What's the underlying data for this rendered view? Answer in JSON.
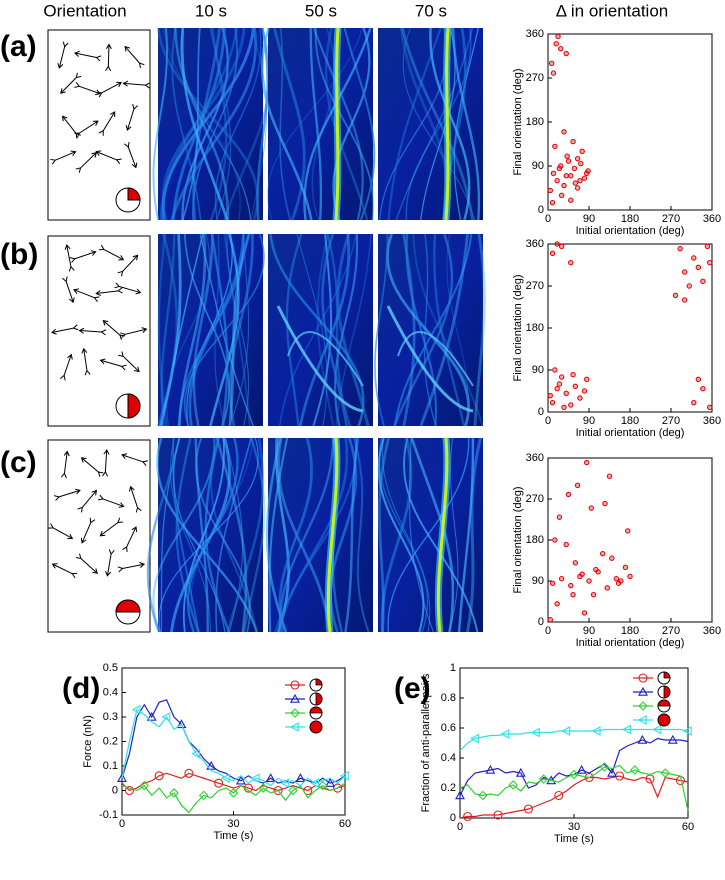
{
  "figure": {
    "headers": [
      "Orientation",
      "10 s",
      "50 s",
      "70 s",
      "Δ in orientation"
    ],
    "panel_labels": [
      "(a)",
      "(b)",
      "(c)",
      "(d)",
      "(e)"
    ]
  },
  "chart_data": [
    {
      "type": "scatter",
      "xlabel": "Initial orientation (deg)",
      "ylabel": "Final orientation (deg)",
      "color": "#e00000",
      "xlim": [
        0,
        360
      ],
      "ylim": [
        0,
        360
      ],
      "xticks": [
        0,
        90,
        180,
        270,
        360
      ],
      "yticks": [
        0,
        90,
        180,
        270,
        360
      ],
      "x": [
        5,
        12,
        20,
        28,
        35,
        42,
        50,
        58,
        65,
        72,
        80,
        88,
        15,
        30,
        45,
        60,
        75,
        10,
        25,
        40,
        55,
        70,
        85,
        50,
        35,
        65,
        8,
        18,
        22,
        12,
        28,
        40
      ],
      "values": [
        40,
        75,
        60,
        90,
        50,
        110,
        70,
        85,
        45,
        95,
        65,
        80,
        130,
        30,
        100,
        55,
        120,
        15,
        85,
        70,
        140,
        60,
        75,
        20,
        160,
        105,
        300,
        340,
        355,
        280,
        330,
        320
      ]
    },
    {
      "type": "scatter",
      "xlabel": "Initial orientation (deg)",
      "ylabel": "Final orientation (deg)",
      "color": "#e00000",
      "xlim": [
        0,
        360
      ],
      "ylim": [
        0,
        360
      ],
      "xticks": [
        0,
        90,
        180,
        270,
        360
      ],
      "yticks": [
        0,
        90,
        180,
        270,
        360
      ],
      "x": [
        10,
        25,
        40,
        55,
        70,
        85,
        15,
        35,
        60,
        80,
        5,
        30,
        50,
        20,
        280,
        300,
        320,
        340,
        355,
        290,
        310,
        330,
        350,
        300,
        10,
        30,
        50,
        20,
        320,
        340,
        355,
        330
      ],
      "values": [
        20,
        60,
        40,
        80,
        30,
        70,
        90,
        10,
        55,
        45,
        35,
        75,
        15,
        50,
        250,
        300,
        330,
        280,
        320,
        350,
        270,
        310,
        355,
        240,
        340,
        355,
        320,
        360,
        20,
        50,
        10,
        70
      ]
    },
    {
      "type": "scatter",
      "xlabel": "Initial orientation (deg)",
      "ylabel": "Final orientation (deg)",
      "color": "#e00000",
      "xlim": [
        0,
        360
      ],
      "ylim": [
        0,
        360
      ],
      "xticks": [
        0,
        90,
        180,
        270,
        360
      ],
      "yticks": [
        0,
        90,
        180,
        270,
        360
      ],
      "x": [
        10,
        30,
        50,
        70,
        90,
        110,
        130,
        150,
        170,
        20,
        60,
        100,
        140,
        180,
        40,
        80,
        120,
        160,
        5,
        25,
        65,
        95,
        135,
        175,
        45,
        85,
        125,
        15,
        55,
        105,
        155,
        75
      ],
      "values": [
        85,
        95,
        80,
        100,
        90,
        110,
        75,
        95,
        120,
        40,
        130,
        60,
        140,
        100,
        170,
        20,
        150,
        90,
        5,
        230,
        300,
        250,
        320,
        200,
        280,
        350,
        260,
        180,
        60,
        115,
        85,
        105
      ]
    },
    {
      "type": "line",
      "xlabel": "Time (s)",
      "ylabel": "Force (nN)",
      "xlim": [
        0,
        60
      ],
      "ylim": [
        -0.1,
        0.5
      ],
      "xticks": [
        0,
        30,
        60
      ],
      "yticks": [
        -0.1,
        0,
        0.1,
        0.2,
        0.3,
        0.4,
        0.5
      ],
      "x": [
        0,
        2,
        4,
        6,
        8,
        10,
        12,
        14,
        16,
        18,
        20,
        22,
        24,
        26,
        28,
        30,
        32,
        34,
        36,
        38,
        40,
        42,
        44,
        46,
        48,
        50,
        52,
        54,
        56,
        58,
        60
      ],
      "series": [
        {
          "color": "#e02020",
          "marker": "o",
          "values": [
            0.03,
            0.0,
            0.01,
            0.03,
            0.04,
            0.06,
            0.07,
            0.06,
            0.05,
            0.07,
            0.06,
            0.05,
            0.04,
            0.03,
            0.02,
            0.01,
            0.02,
            0.01,
            0.0,
            0.02,
            0.01,
            0.0,
            0.01,
            0.02,
            0.01,
            0.0,
            0.02,
            0.01,
            0.0,
            0.01,
            0.02
          ]
        },
        {
          "color": "#2020c0",
          "marker": "^",
          "values": [
            0.05,
            0.15,
            0.3,
            0.35,
            0.3,
            0.36,
            0.37,
            0.3,
            0.27,
            0.2,
            0.17,
            0.13,
            0.1,
            0.08,
            0.07,
            0.05,
            0.04,
            0.06,
            0.04,
            0.03,
            0.05,
            0.03,
            0.04,
            0.03,
            0.05,
            0.04,
            0.03,
            0.05,
            0.03,
            0.04,
            0.06
          ]
        },
        {
          "color": "#30d030",
          "marker": "d",
          "values": [
            0.02,
            0.01,
            0.0,
            0.02,
            -0.02,
            0.01,
            -0.03,
            -0.01,
            -0.06,
            -0.09,
            -0.05,
            -0.02,
            -0.03,
            0.0,
            0.01,
            -0.01,
            0.02,
            0.0,
            -0.02,
            0.01,
            -0.01,
            0.0,
            -0.04,
            0.0,
            0.02,
            -0.03,
            0.0,
            0.02,
            0.0,
            0.01,
            0.03
          ]
        },
        {
          "color": "#30e0e8",
          "marker": "<",
          "values": [
            0.05,
            0.2,
            0.33,
            0.31,
            0.28,
            0.26,
            0.3,
            0.25,
            0.27,
            0.2,
            0.15,
            0.12,
            0.08,
            0.07,
            0.05,
            0.04,
            0.06,
            0.03,
            0.05,
            0.04,
            0.02,
            0.05,
            0.03,
            0.04,
            0.02,
            0.05,
            0.03,
            0.04,
            0.05,
            0.03,
            0.06
          ]
        }
      ]
    },
    {
      "type": "line",
      "xlabel": "Time (s)",
      "ylabel": "Fraction of anti-parallel pairs",
      "xlim": [
        0,
        60
      ],
      "ylim": [
        0,
        1
      ],
      "xticks": [
        0,
        30,
        60
      ],
      "yticks": [
        0,
        0.2,
        0.4,
        0.6,
        0.8,
        1
      ],
      "x": [
        0,
        2,
        4,
        6,
        8,
        10,
        12,
        14,
        16,
        18,
        20,
        22,
        24,
        26,
        28,
        30,
        32,
        34,
        36,
        38,
        40,
        42,
        44,
        46,
        48,
        50,
        52,
        54,
        56,
        58,
        60
      ],
      "series": [
        {
          "color": "#e02020",
          "marker": "o",
          "values": [
            0.0,
            0.01,
            0.01,
            0.02,
            0.02,
            0.02,
            0.03,
            0.04,
            0.05,
            0.06,
            0.08,
            0.1,
            0.12,
            0.15,
            0.18,
            0.22,
            0.25,
            0.27,
            0.27,
            0.26,
            0.27,
            0.28,
            0.26,
            0.25,
            0.27,
            0.26,
            0.14,
            0.27,
            0.26,
            0.25,
            0.24
          ]
        },
        {
          "color": "#2020c0",
          "marker": "^",
          "values": [
            0.15,
            0.25,
            0.3,
            0.31,
            0.32,
            0.33,
            0.3,
            0.31,
            0.3,
            0.2,
            0.22,
            0.27,
            0.25,
            0.3,
            0.28,
            0.29,
            0.32,
            0.3,
            0.33,
            0.36,
            0.3,
            0.45,
            0.48,
            0.5,
            0.52,
            0.5,
            0.53,
            0.52,
            0.52,
            0.52,
            0.51
          ]
        },
        {
          "color": "#30d030",
          "marker": "d",
          "values": [
            0.2,
            0.22,
            0.16,
            0.15,
            0.16,
            0.15,
            0.2,
            0.22,
            0.18,
            0.24,
            0.23,
            0.26,
            0.25,
            0.24,
            0.27,
            0.29,
            0.28,
            0.27,
            0.3,
            0.34,
            0.33,
            0.35,
            0.3,
            0.32,
            0.3,
            0.29,
            0.31,
            0.3,
            0.29,
            0.28,
            0.05
          ]
        },
        {
          "color": "#30e0e8",
          "marker": "<",
          "values": [
            0.45,
            0.5,
            0.53,
            0.54,
            0.55,
            0.55,
            0.56,
            0.56,
            0.56,
            0.57,
            0.57,
            0.57,
            0.57,
            0.58,
            0.58,
            0.58,
            0.58,
            0.58,
            0.58,
            0.59,
            0.59,
            0.59,
            0.59,
            0.59,
            0.59,
            0.59,
            0.59,
            0.59,
            0.59,
            0.59,
            0.58
          ]
        }
      ]
    }
  ]
}
